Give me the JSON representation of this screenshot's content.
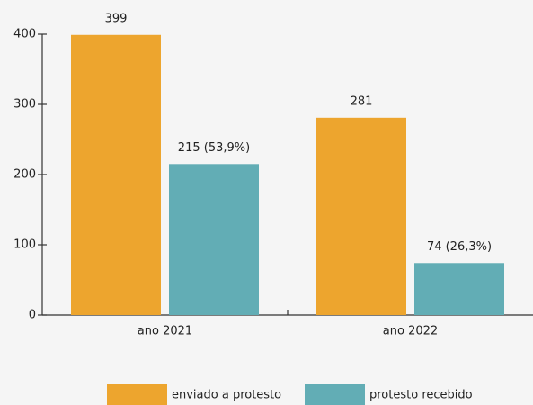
{
  "chart_data": {
    "type": "bar",
    "categories": [
      "ano 2021",
      "ano 2022"
    ],
    "series": [
      {
        "name": "enviado a protesto",
        "color": "#eda52e",
        "values": [
          399,
          281
        ]
      },
      {
        "name": "protesto recebido",
        "color": "#62adb5",
        "values": [
          215,
          74
        ],
        "value_labels": [
          "215 (53,9%)",
          "74 (26,3%)"
        ]
      }
    ],
    "ylim": [
      0,
      400
    ],
    "yticks": [
      0,
      100,
      200,
      300,
      400
    ],
    "legend": "bottom"
  }
}
